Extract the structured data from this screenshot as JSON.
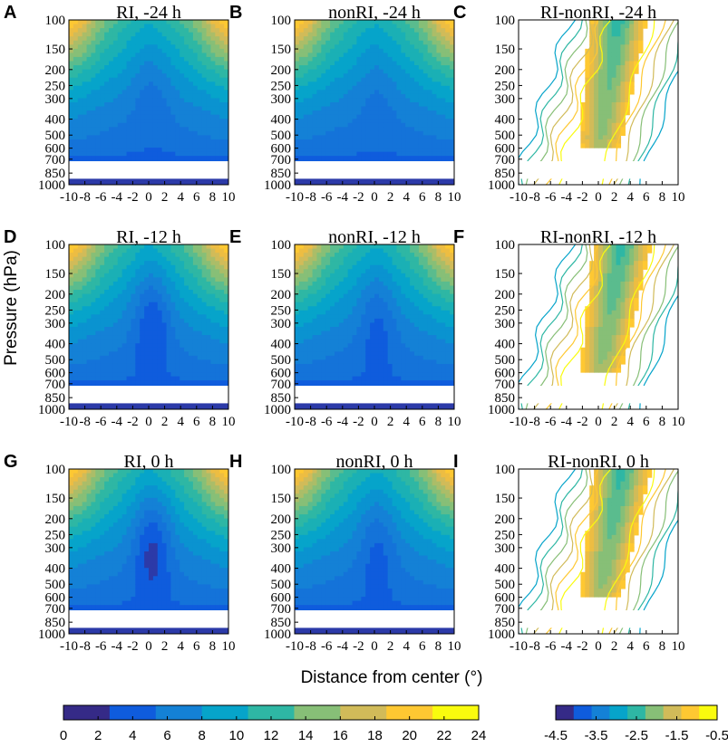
{
  "figure": {
    "ylabel": "Pressure (hPa)",
    "xlabel": "Distance from center (°)"
  },
  "chart_data": [
    {
      "type": "heatmap",
      "letter": "A",
      "title": "RI, -24 h",
      "field": "full",
      "hour": -24,
      "group": "RI",
      "xlabel": "",
      "ylabel": "Pressure (hPa)",
      "xlim": [
        -10,
        10
      ],
      "ylim": [
        1000,
        100
      ]
    },
    {
      "type": "heatmap",
      "letter": "B",
      "title": "nonRI, -24 h",
      "field": "full",
      "hour": -24,
      "group": "nonRI",
      "xlim": [
        -10,
        10
      ],
      "ylim": [
        1000,
        100
      ]
    },
    {
      "type": "heatmap",
      "letter": "C",
      "title": "RI-nonRI, -24 h",
      "field": "diff",
      "hour": -24,
      "xlim": [
        -10,
        10
      ],
      "ylim": [
        1000,
        100
      ]
    },
    {
      "type": "heatmap",
      "letter": "D",
      "title": "RI, -12 h",
      "field": "full",
      "hour": -12,
      "group": "RI",
      "ylabel": "Pressure (hPa)",
      "xlim": [
        -10,
        10
      ],
      "ylim": [
        1000,
        100
      ]
    },
    {
      "type": "heatmap",
      "letter": "E",
      "title": "nonRI, -12 h",
      "field": "full",
      "hour": -12,
      "group": "nonRI",
      "xlim": [
        -10,
        10
      ],
      "ylim": [
        1000,
        100
      ]
    },
    {
      "type": "heatmap",
      "letter": "F",
      "title": "RI-nonRI, -12 h",
      "field": "diff",
      "hour": -12,
      "xlim": [
        -10,
        10
      ],
      "ylim": [
        1000,
        100
      ]
    },
    {
      "type": "heatmap",
      "letter": "G",
      "title": "RI, 0 h",
      "field": "full",
      "hour": 0,
      "group": "RI",
      "ylabel": "Pressure (hPa)",
      "xlim": [
        -10,
        10
      ],
      "ylim": [
        1000,
        100
      ]
    },
    {
      "type": "heatmap",
      "letter": "H",
      "title": "nonRI, 0 h",
      "field": "full",
      "hour": 0,
      "group": "nonRI",
      "xlim": [
        -10,
        10
      ],
      "ylim": [
        1000,
        100
      ]
    },
    {
      "type": "heatmap",
      "letter": "I",
      "title": "RI-nonRI, 0 h",
      "field": "diff",
      "hour": 0,
      "xlim": [
        -10,
        10
      ],
      "ylim": [
        1000,
        100
      ]
    }
  ],
  "axes": {
    "x_ticks": [
      "-10",
      "-8",
      "-6",
      "-4",
      "-2",
      "0",
      "2",
      "4",
      "6",
      "8",
      "10"
    ],
    "y_ticks": [
      "100",
      "150",
      "200",
      "250",
      "300",
      "400",
      "500",
      "600",
      "700",
      "850",
      "1000"
    ]
  },
  "colorbars": {
    "full": {
      "ticks": [
        "0",
        "2",
        "4",
        "6",
        "8",
        "10",
        "12",
        "14",
        "16",
        "18",
        "20",
        "22",
        "24"
      ],
      "colors": [
        "#352a87",
        "#0f5cdd",
        "#1481d6",
        "#06a4ca",
        "#2eb7a4",
        "#87bf77",
        "#d1bb59",
        "#fec832",
        "#f9fb0e"
      ]
    },
    "diff": {
      "ticks": [
        "-4.5",
        "-3.5",
        "-2.5",
        "-1.5",
        "-0.5"
      ],
      "colors": [
        "#352a87",
        "#0f5cdd",
        "#1481d6",
        "#06a4ca",
        "#2eb7a4",
        "#87bf77",
        "#d1bb59",
        "#fec832",
        "#f9fb0e"
      ]
    }
  },
  "palette": [
    "#352a87",
    "#2c3aa8",
    "#0f5cdd",
    "#1473d9",
    "#1481d6",
    "#0a93d0",
    "#06a4ca",
    "#1ab0b5",
    "#2eb7a4",
    "#5abc8e",
    "#87bf77",
    "#abbd68",
    "#d1bb59",
    "#edbd42",
    "#fec832",
    "#f8dc20",
    "#f9fb0e"
  ]
}
